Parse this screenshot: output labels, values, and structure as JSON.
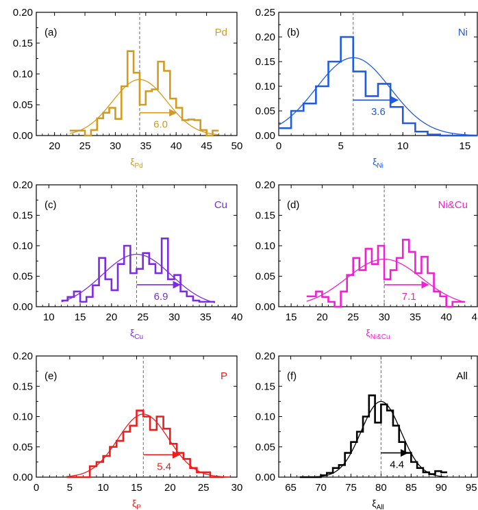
{
  "figure": {
    "background": "#ffffff"
  },
  "chart_data": [
    {
      "panel_label": "(a)",
      "element": "Pd",
      "color": "#D29A1E",
      "type": "histogram+gaussian",
      "xlabel_main": "ξ",
      "xlabel_sub": "Pd",
      "xlim": [
        17,
        50
      ],
      "ylim": [
        0,
        0.2
      ],
      "xticks": [
        20,
        25,
        30,
        35,
        40,
        45,
        50
      ],
      "yticks": [
        0.0,
        0.05,
        0.1,
        0.15,
        0.2
      ],
      "ytick_labels": [
        "0.00",
        "0.05",
        "0.10",
        "0.15",
        "0.20"
      ],
      "mean": 34,
      "sigma": 4.5,
      "peak": 0.091,
      "fit_range": [
        22.5,
        47
      ],
      "arrow": {
        "from": 34,
        "to": 40,
        "y": 0.037,
        "label": "6.0"
      },
      "hist": {
        "edges": [
          22.5,
          25,
          26,
          27,
          28,
          29,
          30,
          31,
          32,
          33,
          34,
          35,
          36,
          37,
          38,
          39,
          40,
          41,
          42,
          43,
          44,
          45,
          46,
          47
        ],
        "values": [
          0.008,
          0.0,
          0.009,
          0.028,
          0.037,
          0.045,
          0.027,
          0.08,
          0.137,
          0.102,
          0.05,
          0.072,
          0.075,
          0.12,
          0.105,
          0.06,
          0.045,
          0.025,
          0.026,
          0.025,
          0.009,
          0.0,
          0.008
        ]
      }
    },
    {
      "panel_label": "(b)",
      "element": "Ni",
      "color": "#1E5BE0",
      "type": "histogram+gaussian",
      "xlabel_main": "ξ",
      "xlabel_sub": "Ni",
      "xlim": [
        0,
        16
      ],
      "ylim": [
        0,
        0.25
      ],
      "xticks": [
        0,
        5,
        10,
        15
      ],
      "yticks": [
        0.0,
        0.05,
        0.1,
        0.15,
        0.2,
        0.25
      ],
      "ytick_labels": [
        "0.00",
        "0.05",
        "0.10",
        "0.15",
        "0.20",
        "0.25"
      ],
      "mean": 6,
      "sigma": 3.0,
      "peak": 0.158,
      "fit_range": [
        0,
        16
      ],
      "arrow": {
        "from": 6,
        "to": 9.6,
        "y": 0.072,
        "label": "3.6"
      },
      "hist": {
        "edges": [
          0,
          1,
          2,
          3,
          4,
          5,
          6,
          7,
          8,
          9,
          10,
          11,
          12,
          13,
          14,
          15,
          16
        ],
        "values": [
          0.015,
          0.05,
          0.065,
          0.1,
          0.15,
          0.2,
          0.13,
          0.08,
          0.105,
          0.058,
          0.025,
          0.008,
          0.002,
          0.0,
          0.0,
          0.0
        ]
      }
    },
    {
      "panel_label": "(c)",
      "element": "Cu",
      "color": "#7B2BE0",
      "type": "histogram+gaussian",
      "xlabel_main": "ξ",
      "xlabel_sub": "Cu",
      "xlim": [
        8,
        40
      ],
      "ylim": [
        0,
        0.2
      ],
      "xticks": [
        10,
        15,
        20,
        25,
        30,
        35,
        40
      ],
      "yticks": [
        0.0,
        0.05,
        0.1,
        0.15,
        0.2
      ],
      "ytick_labels": [
        "0.00",
        "0.05",
        "0.10",
        "0.15",
        "0.20"
      ],
      "mean": 24,
      "sigma": 5.5,
      "peak": 0.086,
      "fit_range": [
        12,
        36.5
      ],
      "arrow": {
        "from": 24,
        "to": 30.9,
        "y": 0.036,
        "label": "6.9"
      },
      "hist": {
        "edges": [
          12,
          13,
          14,
          15,
          16,
          17,
          18,
          19,
          20,
          21,
          22,
          23,
          24,
          25,
          26,
          27,
          28,
          29,
          30,
          31,
          32,
          33,
          34,
          35,
          36.5
        ],
        "values": [
          0.01,
          0.016,
          0.025,
          0.008,
          0.016,
          0.035,
          0.08,
          0.045,
          0.027,
          0.07,
          0.1,
          0.055,
          0.062,
          0.088,
          0.07,
          0.055,
          0.112,
          0.045,
          0.052,
          0.025,
          0.017,
          0.01,
          0.008,
          0.008
        ]
      }
    },
    {
      "panel_label": "(d)",
      "element": "Ni&Cu",
      "color": "#F020D0",
      "type": "histogram+gaussian",
      "xlabel_main": "ξ",
      "xlabel_sub": "Ni&Cu",
      "xlim": [
        13,
        45
      ],
      "ylim": [
        0,
        0.2
      ],
      "xticks": [
        15,
        20,
        25,
        30,
        35,
        40,
        45
      ],
      "yticks": [
        0.0,
        0.05,
        0.1,
        0.15,
        0.2
      ],
      "ytick_labels": [
        "0.00",
        "0.05",
        "0.10",
        "0.15",
        "0.20"
      ],
      "mean": 30,
      "sigma": 6.0,
      "peak": 0.078,
      "fit_range": [
        17.5,
        43
      ],
      "arrow": {
        "from": 30,
        "to": 37.1,
        "y": 0.036,
        "label": "7.1"
      },
      "hist": {
        "edges": [
          17.5,
          19,
          20,
          21,
          22,
          23,
          24,
          25,
          26,
          27,
          28,
          29,
          30,
          31,
          32,
          33,
          34,
          35,
          36,
          37,
          38,
          39,
          40,
          41,
          42,
          43
        ],
        "values": [
          0.017,
          0.025,
          0.016,
          0.008,
          0.0,
          0.025,
          0.052,
          0.08,
          0.06,
          0.095,
          0.07,
          0.1,
          0.045,
          0.06,
          0.08,
          0.11,
          0.09,
          0.055,
          0.082,
          0.055,
          0.025,
          0.017,
          0.0,
          0.008,
          0.008
        ]
      }
    },
    {
      "panel_label": "(e)",
      "element": "P",
      "color": "#EE1C1C",
      "type": "histogram+gaussian",
      "xlabel_main": "ξ",
      "xlabel_sub": "P",
      "xlim": [
        0,
        30
      ],
      "ylim": [
        0,
        0.2
      ],
      "xticks": [
        0,
        5,
        10,
        15,
        20,
        25,
        30
      ],
      "yticks": [
        0.0,
        0.05,
        0.1,
        0.15,
        0.2
      ],
      "ytick_labels": [
        "0.00",
        "0.05",
        "0.10",
        "0.15",
        "0.20"
      ],
      "mean": 16,
      "sigma": 3.8,
      "peak": 0.104,
      "fit_range": [
        4.5,
        29
      ],
      "arrow": {
        "from": 16,
        "to": 21.4,
        "y": 0.037,
        "label": "5.4"
      },
      "hist": {
        "edges": [
          4.5,
          6,
          7,
          8,
          9,
          10,
          11,
          12,
          13,
          14,
          15,
          16,
          17,
          18,
          19,
          20,
          21,
          22,
          23,
          24,
          25,
          26,
          27,
          28
        ],
        "values": [
          0.0,
          0.0,
          0.0,
          0.018,
          0.025,
          0.035,
          0.05,
          0.06,
          0.075,
          0.085,
          0.11,
          0.1,
          0.078,
          0.1,
          0.08,
          0.055,
          0.04,
          0.03,
          0.015,
          0.008,
          0.008,
          0.0,
          0.0
        ]
      }
    },
    {
      "panel_label": "(f)",
      "element": "All",
      "color": "#000000",
      "type": "histogram+gaussian",
      "xlabel_main": "ξ",
      "xlabel_sub": "All",
      "xlim": [
        63,
        96
      ],
      "ylim": [
        0,
        0.2
      ],
      "xticks": [
        65,
        70,
        75,
        80,
        85,
        90,
        95
      ],
      "yticks": [
        0.0,
        0.05,
        0.1,
        0.15,
        0.2
      ],
      "ytick_labels": [
        "0.00",
        "0.05",
        "0.10",
        "0.15",
        "0.20"
      ],
      "mean": 80,
      "sigma": 3.3,
      "peak": 0.125,
      "fit_range": [
        66.5,
        91
      ],
      "arrow": {
        "from": 80,
        "to": 84.4,
        "y": 0.04,
        "label": "4.4"
      },
      "hist": {
        "edges": [
          66.5,
          70,
          71,
          72,
          73,
          74,
          75,
          76,
          77,
          78,
          79,
          80,
          81,
          82,
          83,
          84,
          85,
          86,
          87,
          88,
          89,
          90,
          91
        ],
        "values": [
          0.0,
          0.003,
          0.007,
          0.015,
          0.02,
          0.04,
          0.058,
          0.075,
          0.1,
          0.135,
          0.09,
          0.12,
          0.11,
          0.085,
          0.058,
          0.04,
          0.025,
          0.015,
          0.008,
          0.005,
          0.01,
          0.008
        ]
      }
    }
  ]
}
